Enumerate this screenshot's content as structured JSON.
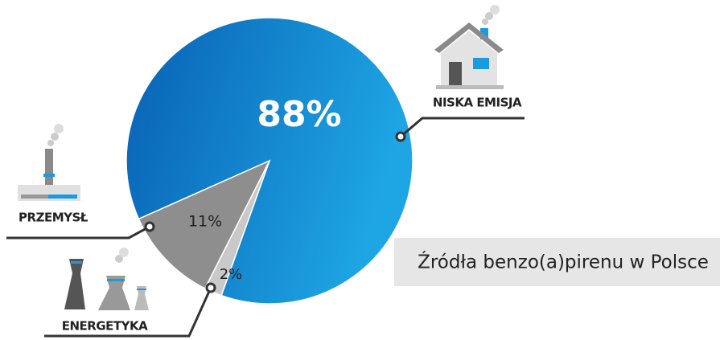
{
  "chart_data": {
    "type": "pie",
    "title": "Źródła benzo(a)pirenu w Polsce",
    "categories": [
      "NISKA EMISJA",
      "ENERGETYKA",
      "PRZEMYSŁ"
    ],
    "values": [
      88,
      2,
      11
    ],
    "value_labels": [
      "88%",
      "2%",
      "11%"
    ],
    "colors": [
      "#0f7fd0",
      "#c9c9c9",
      "#8e8e8e"
    ]
  }
}
